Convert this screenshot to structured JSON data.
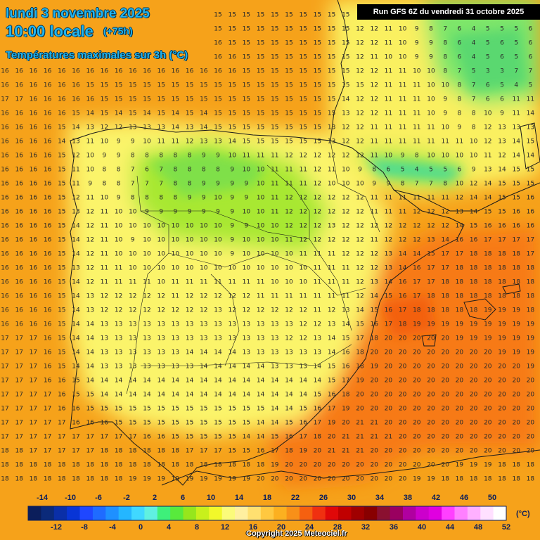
{
  "header": {
    "date": "lundi 3 novembre 2025",
    "local_time": "10:00 locale",
    "lead_hours": "(+75h)",
    "variable": "Températures maximales sur 3h (°C)",
    "run": "Run GFS 6Z du vendredi 31 octobre 2025"
  },
  "legend": {
    "top_labels": [
      "-14",
      "-10",
      "-6",
      "-2",
      "2",
      "6",
      "10",
      "14",
      "18",
      "22",
      "26",
      "30",
      "34",
      "38",
      "42",
      "46",
      "50"
    ],
    "bottom_labels": [
      "-12",
      "-8",
      "-4",
      "0",
      "4",
      "8",
      "12",
      "16",
      "20",
      "24",
      "28",
      "32",
      "36",
      "40",
      "44",
      "48",
      "52"
    ],
    "unit": "(°C)",
    "colors": [
      "#0b1e5b",
      "#0b2a7a",
      "#0a2fa8",
      "#0835d6",
      "#1f47ff",
      "#1f6bff",
      "#1e90ff",
      "#24b6ff",
      "#40d8ff",
      "#60f0e0",
      "#3ef07a",
      "#58ea3c",
      "#96e61c",
      "#c8f01c",
      "#f2f82a",
      "#fbfb7a",
      "#fff0a0",
      "#ffe070",
      "#ffc840",
      "#fcb020",
      "#f89018",
      "#f56010",
      "#f03010",
      "#e00808",
      "#c00000",
      "#a00000",
      "#880000",
      "#8a1030",
      "#9a0060",
      "#b000a0",
      "#cc00cc",
      "#e000e0",
      "#ff40ff",
      "#ff80ff",
      "#ffb0ff",
      "#ffe0ff",
      "#ffffff"
    ]
  },
  "footer": {
    "copyright": "Copyright 2025 Meteociel.fr"
  },
  "palette": {
    "sea": "#f6a21a",
    "cool_inland": "#faf66a",
    "cold": "#a8e830",
    "warm": "#f77a12",
    "contour": "#1a1a1a"
  },
  "map_data": {
    "values_rows": [
      "16 16 16 16 16 16 16 16 16 16 16 16 16 16 16 15 15 15 15 15 15 15 15 15 15 12 12 11 10 9 8 7 6 4 7 6 6 6",
      "16 16 16 16 16 16 16 16 16 16 16 16 16 16 16 15 15 15 15 15 15 15 15 15 15 12 12 11 10 9 8 7 6 4 5 5 5 6",
      "16 16 16 16 16 16 16 16 16 16 16 16 16 16 16 16 15 15 15 15 15 15 15 15 15 12 12 11 10 9 9 8 6 4 5 6 5 6",
      "16 16 16 16 16 16 16 16 16 16 16 16 16 16 16 16 16 15 15 15 15 15 15 15 15 12 11 10 10 9 9 8 6 4 5 6 5 6",
      "16 16 16 16 16 16 16 16 16 16 16 16 16 16 16 16 16 15 15 15 15 15 15 15 15 12 12 11 11 10 10 8 7 5 3 3 7 7",
      "16 16 16 16 16 16 15 15 15 15 15 15 15 15 15 15 15 15 15 15 15 15 15 15 15 15 12 11 11 11 10 10 8 7 6 5 4 5",
      "17 17 16 16 16 16 16 15 15 15 15 15 15 15 15 15 15 15 15 15 15 15 15 15 14 12 12 11 11 11 10 9 8 7 6 6 11 11",
      "16 16 16 16 16 15 14 15 14 15 14 15 14 15 14 15 15 15 15 15 15 15 15 15 13 12 12 11 11 11 10 9 8 8 10 9 11 14",
      "16 16 16 16 15 14 13 12 12 13 13 13 14 13 14 15 15 15 15 15 15 15 15 13 12 12 11 11 11 11 11 10 9 8 12 13 13 13",
      "16 16 16 16 14 13 11 10 9 9 10 11 11 12 13 13 14 15 15 15 15 15 15 13 12 12 11 11 11 11 11 11 11 10 12 13 14 15",
      "16 16 16 16 15 12 10 9 9 8 8 8 8 8 9 9 10 11 11 11 12 12 12 12 12 12 11 10 9 8 10 10 10 10 11 12 14 14",
      "16 16 16 16 15 11 10 8 8 7 6 7 8 8 8 8 9 10 10 11 11 11 12 11 10 9 8 6 5 4 5 5 6 9 13 14 15 15",
      "16 16 16 16 15 11 9 8 8 7 7 7 8 8 9 9 9 9 10 11 11 11 12 10 10 10 9 9 8 7 7 8 10 12 14 15 15 15",
      "16 16 16 16 15 12 11 10 9 8 8 8 8 9 9 10 9 9 10 11 12 12 12 12 12 12 11 11 11 11 11 11 12 14 14 15 15 16",
      "16 16 16 16 15 13 12 11 10 10 9 9 9 9 9 9 9 10 10 11 12 12 12 12 12 12 11 11 11 12 12 12 13 14 15 15 16 16",
      "16 16 16 16 15 14 12 11 10 10 10 10 10 10 10 10 9 9 10 10 12 12 12 13 12 12 12 12 12 12 12 12 14 15 16 16 16 16",
      "16 16 16 16 15 14 12 11 10 9 10 10 10 10 10 10 9 10 10 10 11 12 12 12 12 12 11 12 12 12 13 14 16 16 17 17 17 17",
      "16 16 16 16 15 14 12 11 10 10 10 10 10 10 10 10 9 10 10 10 10 11 11 11 12 12 12 13 14 14 15 17 17 18 18 18 18 17",
      "16 16 16 16 15 13 12 11 11 10 10 10 10 10 10 10 10 10 10 10 10 10 11 11 11 12 12 13 14 16 17 17 18 18 18 18 18 18",
      "16 16 16 16 15 14 12 11 11 11 11 10 11 11 11 11 11 11 11 10 10 10 11 11 11 12 13 14 16 17 17 18 18 18 18 18 18 18",
      "16 16 16 16 15 14 13 12 12 12 12 12 11 12 12 12 12 12 11 11 11 11 11 11 11 12 14 15 16 17 18 18 18 18 18 18 18 18",
      "16 16 16 16 15 14 13 12 12 12 12 12 12 12 12 13 12 12 12 12 12 12 11 12 13 14 15 16 17 18 18 18 18 18 19 19 19 18",
      "16 16 16 16 15 14 14 13 13 13 13 13 13 13 13 13 13 13 13 13 13 12 12 13 14 15 16 17 18 19 19 19 19 19 19 19 19 19",
      "17 17 17 16 15 14 14 13 13 13 13 13 13 13 13 13 13 13 13 13 12 12 13 14 15 17 18 20 20 20 20 20 19 19 19 19 19 19",
      "17 17 17 16 15 14 14 13 13 13 13 13 13 14 14 14 14 13 13 13 13 13 13 14 16 18 20 20 20 20 20 20 20 20 20 19 19 19",
      "17 17 17 16 15 14 14 13 13 13 13 13 13 13 14 14 14 14 14 13 13 13 14 15 16 18 19 20 20 20 20 20 20 20 20 20 20 19",
      "17 17 17 16 16 15 14 14 14 14 14 14 14 14 14 14 14 14 14 14 14 14 14 15 17 19 20 20 20 20 20 20 20 20 20 20 20 20",
      "17 17 17 17 16 15 15 14 14 14 14 14 14 14 14 14 14 14 14 14 14 14 15 16 18 20 20 20 20 20 20 20 20 20 20 20 20 20",
      "17 17 17 17 16 16 15 15 15 15 15 15 15 15 15 15 15 15 15 14 14 15 16 17 19 20 20 20 20 20 20 20 20 20 20 20 20 20",
      "17 17 17 17 17 16 16 16 15 15 15 15 15 15 15 15 15 15 14 14 15 16 17 19 20 21 21 20 20 20 20 20 20 20 20 20 20 20",
      "17 17 17 17 17 17 17 17 17 17 16 16 15 15 15 15 15 14 14 15 16 17 18 20 21 21 21 21 20 20 20 20 20 20 20 20 20 20",
      "18 18 17 17 17 17 17 18 18 18 18 18 18 17 17 17 15 15 16 17 18 19 20 21 21 21 20 20 20 20 20 20 20 20 20 20 20 20",
      "18 18 18 18 18 18 18 18 18 18 18 18 18 18 18 18 18 18 18 19 20 20 20 20 20 20 20 20 20 20 20 20 19 19 19 18 18 18",
      "18 18 18 18 18 18 18 18 18 19 19 19 19 19 19 19 19 19 20 20 20 20 20 20 20 20 20 20 20 19 19 18 18 18 18 18 18 18",
      "18 18 18 18 18 18 18 18 18 19 19 19 19 19 19 20 20 20 20 20 20 20 20 20 20 20 20 19 18 18 18 18 17 17 17 17 17 17",
      "18 18 18 18 18 18 18 18 19 19 19 19 19 19 20 20 20 20 20 20 20 20 20 20 19 19 18 18 17 17 16 16 16 16 16 16 16 16",
      "18 18 18 18 18 18 18 19 19 19 19 19 19 20 20 20 20 20 20 20 20 20 19 19 18 18 17 16 15 15 15 15 15 15 15 15 15 15",
      "19 19 18 18 18 18 19 19 19 19 19 19 19 19 19 19 19 19 19 19 19 19 19 19 18 17 16 15 15 15 15 15 15 15 15 15 15 15",
      "19 19 19 19 19 19 19 19 19 19 19 19 19 19 19 19 19 19 19 19 19 19 19 19 18 17 16 15 15 15 15 15 15 15 15 15 15 15"
    ]
  }
}
